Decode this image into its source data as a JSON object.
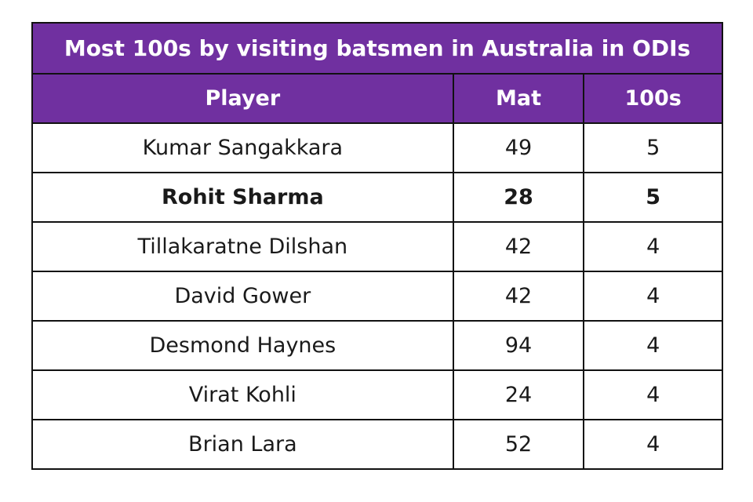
{
  "table": {
    "title": "Most 100s by visiting batsmen in Australia in ODIs",
    "header": [
      "Player",
      "Mat",
      "100s"
    ],
    "header_color": "#7030a0",
    "rows": [
      {
        "cells": [
          "Kumar Sangakkara",
          49,
          5
        ]
      },
      {
        "cells": [
          "Rohit Sharma",
          28,
          5
        ],
        "bold": true
      },
      {
        "cells": [
          "Tillakaratne Dilshan",
          42,
          4
        ]
      },
      {
        "cells": [
          "David Gower",
          42,
          4
        ]
      },
      {
        "cells": [
          "Desmond Haynes",
          94,
          4
        ]
      },
      {
        "cells": [
          "Virat Kohli",
          24,
          4
        ]
      },
      {
        "cells": [
          "Brian Lara",
          52,
          4
        ]
      }
    ]
  }
}
